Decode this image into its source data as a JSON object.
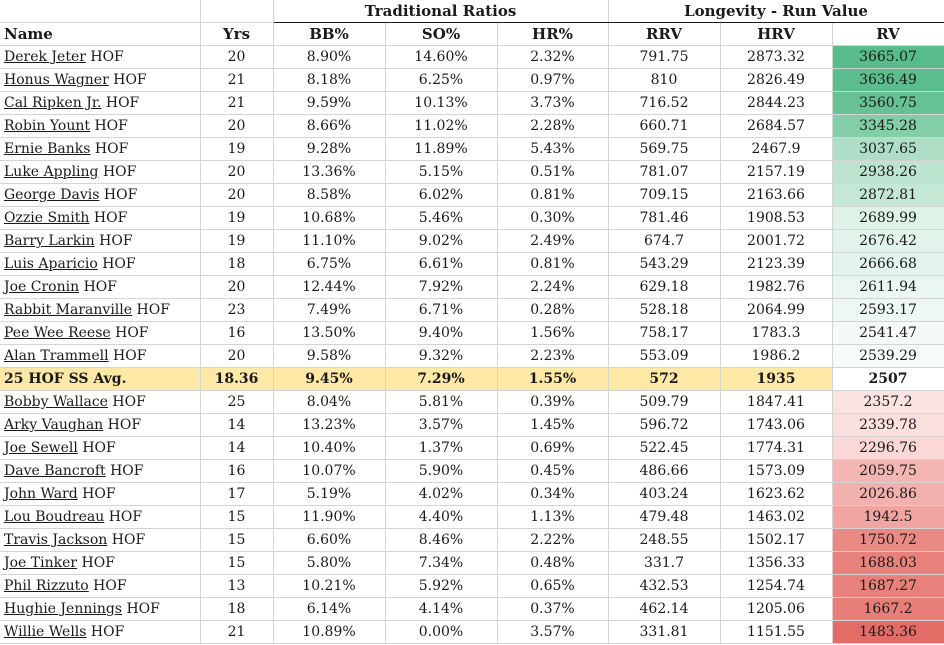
{
  "header": {
    "groups": [
      {
        "label": "Traditional Ratios"
      },
      {
        "label": "Longevity - Run Value"
      }
    ],
    "columns": [
      "Name",
      "Yrs",
      "BB%",
      "SO%",
      "HR%",
      "RRV",
      "HRV",
      "RV"
    ]
  },
  "rows": [
    {
      "name": "Derek Jeter",
      "tag": "HOF",
      "yrs": "20",
      "bb": "8.90%",
      "so": "14.60%",
      "hr": "2.32%",
      "rrv": "791.75",
      "hrv": "2873.32",
      "rv": "3665.07",
      "rv_color": "#57bb8a"
    },
    {
      "name": "Honus Wagner",
      "tag": "HOF",
      "yrs": "21",
      "bb": "8.18%",
      "so": "6.25%",
      "hr": "0.97%",
      "rrv": "810",
      "hrv": "2826.49",
      "rv": "3636.49",
      "rv_color": "#5cbd8e"
    },
    {
      "name": "Cal Ripken Jr.",
      "tag": "HOF",
      "yrs": "21",
      "bb": "9.59%",
      "so": "10.13%",
      "hr": "3.73%",
      "rrv": "716.52",
      "hrv": "2844.23",
      "rv": "3560.75",
      "rv_color": "#66c195"
    },
    {
      "name": "Robin Yount",
      "tag": "HOF",
      "yrs": "20",
      "bb": "8.66%",
      "so": "11.02%",
      "hr": "2.28%",
      "rrv": "660.71",
      "hrv": "2684.57",
      "rv": "3345.28",
      "rv_color": "#84cda9"
    },
    {
      "name": "Ernie Banks",
      "tag": "HOF",
      "yrs": "19",
      "bb": "9.28%",
      "so": "11.89%",
      "hr": "5.43%",
      "rrv": "569.75",
      "hrv": "2467.9",
      "rv": "3037.65",
      "rv_color": "#aedec6"
    },
    {
      "name": "Luke Appling",
      "tag": "HOF",
      "yrs": "20",
      "bb": "13.36%",
      "so": "5.15%",
      "hr": "0.51%",
      "rrv": "781.07",
      "hrv": "2157.19",
      "rv": "2938.26",
      "rv_color": "#bce4d0"
    },
    {
      "name": "George Davis",
      "tag": "HOF",
      "yrs": "20",
      "bb": "8.58%",
      "so": "6.02%",
      "hr": "0.81%",
      "rrv": "709.15",
      "hrv": "2163.66",
      "rv": "2872.81",
      "rv_color": "#c5e8d6"
    },
    {
      "name": "Ozzie Smith",
      "tag": "HOF",
      "yrs": "19",
      "bb": "10.68%",
      "so": "5.46%",
      "hr": "0.30%",
      "rrv": "781.46",
      "hrv": "1908.53",
      "rv": "2689.99",
      "rv_color": "#dff2e8"
    },
    {
      "name": "Barry Larkin",
      "tag": "HOF",
      "yrs": "19",
      "bb": "11.10%",
      "so": "9.02%",
      "hr": "2.49%",
      "rrv": "674.7",
      "hrv": "2001.72",
      "rv": "2676.42",
      "rv_color": "#e1f3ea"
    },
    {
      "name": "Luis Aparicio",
      "tag": "HOF",
      "yrs": "18",
      "bb": "6.75%",
      "so": "6.61%",
      "hr": "0.81%",
      "rrv": "543.29",
      "hrv": "2123.39",
      "rv": "2666.68",
      "rv_color": "#e2f4eb"
    },
    {
      "name": "Joe Cronin",
      "tag": "HOF",
      "yrs": "20",
      "bb": "12.44%",
      "so": "7.92%",
      "hr": "2.24%",
      "rrv": "629.18",
      "hrv": "1982.76",
      "rv": "2611.94",
      "rv_color": "#eaf7f0"
    },
    {
      "name": "Rabbit Maranville",
      "tag": "HOF",
      "yrs": "23",
      "bb": "7.49%",
      "so": "6.71%",
      "hr": "0.28%",
      "rrv": "528.18",
      "hrv": "2064.99",
      "rv": "2593.17",
      "rv_color": "#edf8f2"
    },
    {
      "name": "Pee Wee Reese",
      "tag": "HOF",
      "yrs": "16",
      "bb": "13.50%",
      "so": "9.40%",
      "hr": "1.56%",
      "rrv": "758.17",
      "hrv": "1783.3",
      "rv": "2541.47",
      "rv_color": "#f4fbf7"
    },
    {
      "name": "Alan Trammell",
      "tag": "HOF",
      "yrs": "20",
      "bb": "9.58%",
      "so": "9.32%",
      "hr": "2.23%",
      "rrv": "553.09",
      "hrv": "1986.2",
      "rv": "2539.29",
      "rv_color": "#f5fbf8"
    }
  ],
  "average": {
    "name": "25 HOF SS Avg.",
    "yrs": "18.36",
    "bb": "9.45%",
    "so": "7.29%",
    "hr": "1.55%",
    "rrv": "572",
    "hrv": "1935",
    "rv": "2507",
    "highlight_color": "#fde8a6"
  },
  "rows_below": [
    {
      "name": "Bobby Wallace",
      "tag": "HOF",
      "yrs": "25",
      "bb": "8.04%",
      "so": "5.81%",
      "hr": "0.39%",
      "rrv": "509.79",
      "hrv": "1847.41",
      "rv": "2357.2",
      "rv_color": "#fbe3e2"
    },
    {
      "name": "Arky Vaughan",
      "tag": "HOF",
      "yrs": "14",
      "bb": "13.23%",
      "so": "3.57%",
      "hr": "1.45%",
      "rrv": "596.72",
      "hrv": "1743.06",
      "rv": "2339.78",
      "rv_color": "#fadfde"
    },
    {
      "name": "Joe Sewell",
      "tag": "HOF",
      "yrs": "14",
      "bb": "10.40%",
      "so": "1.37%",
      "hr": "0.69%",
      "rrv": "522.45",
      "hrv": "1774.31",
      "rv": "2296.76",
      "rv_color": "#f9d8d7"
    },
    {
      "name": "Dave Bancroft",
      "tag": "HOF",
      "yrs": "16",
      "bb": "10.07%",
      "so": "5.90%",
      "hr": "0.45%",
      "rrv": "486.66",
      "hrv": "1573.09",
      "rv": "2059.75",
      "rv_color": "#f3b6b3"
    },
    {
      "name": "John Ward",
      "tag": "HOF",
      "yrs": "17",
      "bb": "5.19%",
      "so": "4.02%",
      "hr": "0.34%",
      "rrv": "403.24",
      "hrv": "1623.62",
      "rv": "2026.86",
      "rv_color": "#f2b1ae"
    },
    {
      "name": "Lou Boudreau",
      "tag": "HOF",
      "yrs": "15",
      "bb": "11.90%",
      "so": "4.40%",
      "hr": "1.13%",
      "rrv": "479.48",
      "hrv": "1463.02",
      "rv": "1942.5",
      "rv_color": "#f0a5a1"
    },
    {
      "name": "Travis Jackson",
      "tag": "HOF",
      "yrs": "15",
      "bb": "6.60%",
      "so": "8.46%",
      "hr": "2.22%",
      "rrv": "248.55",
      "hrv": "1502.17",
      "rv": "1750.72",
      "rv_color": "#ea8a85"
    },
    {
      "name": "Joe Tinker",
      "tag": "HOF",
      "yrs": "15",
      "bb": "5.80%",
      "so": "7.34%",
      "hr": "0.48%",
      "rrv": "331.7",
      "hrv": "1356.33",
      "rv": "1688.03",
      "rv_color": "#e8817b"
    },
    {
      "name": "Phil Rizzuto",
      "tag": "HOF",
      "yrs": "13",
      "bb": "10.21%",
      "so": "5.92%",
      "hr": "0.65%",
      "rrv": "432.53",
      "hrv": "1254.74",
      "rv": "1687.27",
      "rv_color": "#e8817b"
    },
    {
      "name": "Hughie Jennings",
      "tag": "HOF",
      "yrs": "18",
      "bb": "6.14%",
      "so": "4.14%",
      "hr": "0.37%",
      "rrv": "462.14",
      "hrv": "1205.06",
      "rv": "1667.2",
      "rv_color": "#e77e78"
    },
    {
      "name": "Willie Wells",
      "tag": "HOF",
      "yrs": "21",
      "bb": "10.89%",
      "so": "0.00%",
      "hr": "3.57%",
      "rrv": "331.81",
      "hrv": "1151.55",
      "rv": "1483.36",
      "rv_color": "#e46c66"
    }
  ]
}
